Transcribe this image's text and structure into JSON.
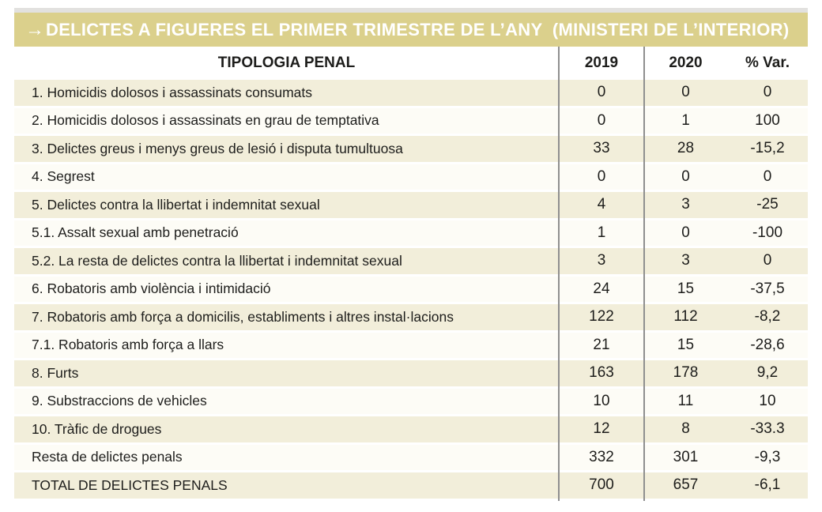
{
  "title_bar": {
    "arrow": "→",
    "text": "DELICTES A FIGUERES EL PRIMER TRIMESTRE DE L’ANY  (MINISTERI DE L’INTERIOR)"
  },
  "chart_data": {
    "type": "table",
    "title": "DELICTES A FIGUERES EL PRIMER TRIMESTRE DE L’ANY (MINISTERI DE L’INTERIOR)",
    "columns": [
      "TIPOLOGIA PENAL",
      "2019",
      "2020",
      "% Var."
    ],
    "rows": [
      [
        "1. Homicidis dolosos i assassinats consumats",
        "0",
        "0",
        "0"
      ],
      [
        "2. Homicidis dolosos i assassinats en grau de temptativa",
        "0",
        "1",
        "100"
      ],
      [
        "3. Delictes greus i menys greus de lesió i disputa tumultuosa",
        "33",
        "28",
        "-15,2"
      ],
      [
        "4. Segrest",
        "0",
        "0",
        "0"
      ],
      [
        "5. Delictes contra la llibertat i indemnitat sexual",
        "4",
        "3",
        "-25"
      ],
      [
        "5.1. Assalt sexual amb penetració",
        "1",
        "0",
        "-100"
      ],
      [
        "5.2. La resta de delictes contra la llibertat i indemnitat sexual",
        "3",
        "3",
        "0"
      ],
      [
        "6. Robatoris amb violència i intimidació",
        "24",
        "15",
        "-37,5"
      ],
      [
        "7. Robatoris amb força a domicilis, establiments i altres instal·lacions",
        "122",
        "112",
        "-8,2"
      ],
      [
        "7.1. Robatoris amb força a llars",
        "21",
        "15",
        "-28,6"
      ],
      [
        "8. Furts",
        "163",
        "178",
        "9,2"
      ],
      [
        "9. Substraccions de vehicles",
        "10",
        "11",
        "10"
      ],
      [
        "10. Tràfic de drogues",
        "12",
        "8",
        "-33.3"
      ],
      [
        "Resta de delictes penals",
        "332",
        "301",
        "-9,3"
      ],
      [
        "TOTAL DE DELICTES PENALS",
        "700",
        "657",
        "-6,1"
      ]
    ]
  },
  "style": {
    "bar_color": "#dbd08c",
    "strip_color": "#e2e1df",
    "title_text_color": "#ffffff",
    "row_odd_bg": "#f2eeda",
    "row_even_bg": "#fdfcf6",
    "divider_color": "#8f8f8f",
    "text_color": "#1d1d1b"
  }
}
